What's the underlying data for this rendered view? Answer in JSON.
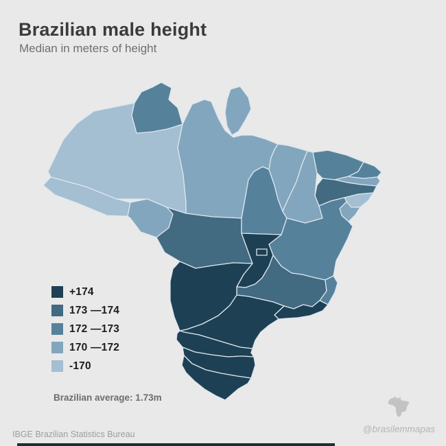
{
  "page": {
    "background": "#e9e9e9"
  },
  "header": {
    "title": "Brazilian male height",
    "subtitle": "Median in meters of height"
  },
  "legend": {
    "items": [
      {
        "key": "gt174",
        "label": "+174",
        "color": "#1d4054"
      },
      {
        "key": "173_174",
        "label": "173 —174",
        "color": "#426a81"
      },
      {
        "key": "172_173",
        "label": "172 —173",
        "color": "#55819b"
      },
      {
        "key": "170_172",
        "label": "170 —172",
        "color": "#82a6be"
      },
      {
        "key": "lt170",
        "label": "-170",
        "color": "#a4bed2"
      }
    ]
  },
  "map": {
    "border_color": "#dde6ec",
    "states": [
      {
        "id": "AC",
        "name": "Acre",
        "category": "lt170"
      },
      {
        "id": "AM",
        "name": "Amazonas",
        "category": "lt170"
      },
      {
        "id": "RR",
        "name": "Roraima",
        "category": "172_173"
      },
      {
        "id": "AP",
        "name": "Amapa",
        "category": "170_172"
      },
      {
        "id": "PA",
        "name": "Para",
        "category": "170_172"
      },
      {
        "id": "RO",
        "name": "Rondonia",
        "category": "170_172"
      },
      {
        "id": "MT",
        "name": "Mato Grosso",
        "category": "173_174"
      },
      {
        "id": "TO",
        "name": "Tocantins",
        "category": "172_173"
      },
      {
        "id": "MA",
        "name": "Maranhao",
        "category": "170_172"
      },
      {
        "id": "PI",
        "name": "Piaui",
        "category": "170_172"
      },
      {
        "id": "CE",
        "name": "Ceara",
        "category": "172_173"
      },
      {
        "id": "RN",
        "name": "Rio Grande do Norte",
        "category": "172_173"
      },
      {
        "id": "PB",
        "name": "Paraiba",
        "category": "170_172"
      },
      {
        "id": "PE",
        "name": "Pernambuco",
        "category": "173_174"
      },
      {
        "id": "AL",
        "name": "Alagoas",
        "category": "lt170"
      },
      {
        "id": "SE",
        "name": "Sergipe",
        "category": "170_172"
      },
      {
        "id": "BA",
        "name": "Bahia",
        "category": "172_173"
      },
      {
        "id": "GO",
        "name": "Goias",
        "category": "gt174"
      },
      {
        "id": "DF",
        "name": "Distrito Federal",
        "category": "gt174"
      },
      {
        "id": "MG",
        "name": "Minas Gerais",
        "category": "173_174"
      },
      {
        "id": "ES",
        "name": "Espirito Santo",
        "category": "172_173"
      },
      {
        "id": "RJ",
        "name": "Rio de Janeiro",
        "category": "gt174"
      },
      {
        "id": "SP",
        "name": "Sao Paulo",
        "category": "gt174"
      },
      {
        "id": "MS",
        "name": "Mato Grosso do Sul",
        "category": "gt174"
      },
      {
        "id": "PR",
        "name": "Parana",
        "category": "gt174"
      },
      {
        "id": "SC",
        "name": "Santa Catarina",
        "category": "gt174"
      },
      {
        "id": "RS",
        "name": "Rio Grande do Sul",
        "category": "gt174"
      }
    ]
  },
  "annotation": {
    "average": "Brazilian average: 1.73m"
  },
  "footer": {
    "source": "IBGE Brazilian Statistics Bureau",
    "credit": "@brasilemmapas"
  }
}
